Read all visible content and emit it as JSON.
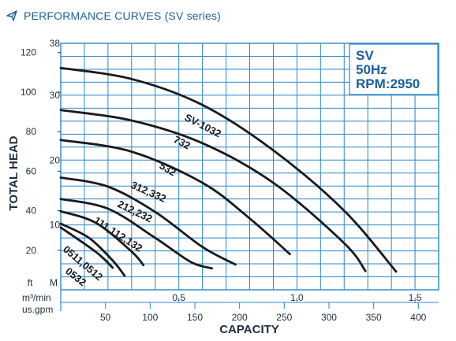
{
  "header": {
    "title": "PERFORMANCE CURVES (SV series)",
    "icon": "paper-plane-icon"
  },
  "colors": {
    "grid": "#2a87c8",
    "curve": "#1a1a1a",
    "accent": "#1a5f9c",
    "text": "#1f2d3d"
  },
  "chart_data": {
    "type": "line",
    "infobox": {
      "line1": "SV",
      "line2": "50Hz",
      "line3": "RPM:2950"
    },
    "xlabel": "CAPACITY",
    "ylabel": "TOTAL HEAD",
    "axis_units": {
      "ft": "ft",
      "m": "M",
      "m3min": "m³/min",
      "usgpm": "us.gpm"
    },
    "xlim_m3min": [
      0,
      1.6
    ],
    "ylim_m": [
      0,
      38
    ],
    "ft_ticks": [
      20,
      40,
      60,
      80,
      100,
      120
    ],
    "m_ticks": [
      10,
      20,
      30,
      38
    ],
    "m3min_ticks": [
      0.5,
      1.0,
      1.5
    ],
    "m3min_tick_labels": [
      "0.5",
      "1.0",
      "1.5"
    ],
    "gpm_ticks": [
      50,
      100,
      150,
      200,
      250,
      300,
      350,
      400
    ],
    "grid": true,
    "series": [
      {
        "name": "SV-1032",
        "points": [
          [
            0,
            34.2
          ],
          [
            0.3,
            32.5
          ],
          [
            0.6,
            28.5
          ],
          [
            0.9,
            21.5
          ],
          [
            1.2,
            12.2
          ],
          [
            1.42,
            2.8
          ]
        ]
      },
      {
        "name": "732",
        "points": [
          [
            0,
            27.7
          ],
          [
            0.3,
            26.1
          ],
          [
            0.6,
            22.6
          ],
          [
            0.9,
            16.5
          ],
          [
            1.2,
            7.2
          ],
          [
            1.29,
            2.9
          ]
        ]
      },
      {
        "name": "532",
        "points": [
          [
            0,
            23.1
          ],
          [
            0.3,
            21.3
          ],
          [
            0.6,
            16.5
          ],
          [
            0.8,
            11.0
          ],
          [
            0.97,
            5.5
          ]
        ]
      },
      {
        "name": "312,332",
        "points": [
          [
            0,
            17.3
          ],
          [
            0.2,
            15.9
          ],
          [
            0.4,
            12.0
          ],
          [
            0.6,
            6.6
          ],
          [
            0.74,
            3.9
          ]
        ]
      },
      {
        "name": "212,232",
        "points": [
          [
            0,
            14.0
          ],
          [
            0.2,
            12.5
          ],
          [
            0.4,
            8.0
          ],
          [
            0.55,
            4.3
          ],
          [
            0.64,
            3.3
          ]
        ]
      },
      {
        "name": "111,112,132",
        "points": [
          [
            0,
            12.1
          ],
          [
            0.15,
            10.3
          ],
          [
            0.3,
            5.9
          ],
          [
            0.35,
            3.8
          ]
        ]
      },
      {
        "name": "0511,0512",
        "points": [
          [
            0,
            10.2
          ],
          [
            0.12,
            8.0
          ],
          [
            0.22,
            4.5
          ],
          [
            0.27,
            2.2
          ]
        ]
      },
      {
        "name": "0532",
        "points": [
          [
            0,
            9.6
          ],
          [
            0.15,
            5.8
          ],
          [
            0.22,
            3.4
          ]
        ]
      }
    ],
    "curve_labels": [
      "SV-1032",
      "732",
      "532",
      "312,332",
      "212,232",
      "111,112,132",
      "0511,0512",
      "0532"
    ]
  }
}
